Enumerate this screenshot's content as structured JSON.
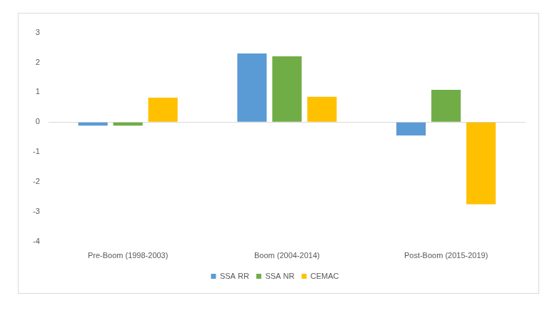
{
  "chart_data": {
    "type": "bar",
    "categories": [
      "Pre-Boom (1998-2003)",
      "Boom (2004-2014)",
      "Post-Boom (2015-2019)"
    ],
    "series": [
      {
        "name": "SSA RR",
        "color": "#5b9bd5",
        "values": [
          -0.12,
          2.3,
          -0.45
        ]
      },
      {
        "name": "SSA NR",
        "color": "#70ad47",
        "values": [
          -0.12,
          2.2,
          1.08
        ]
      },
      {
        "name": "CEMAC",
        "color": "#ffc000",
        "values": [
          0.82,
          0.85,
          -2.75
        ]
      }
    ],
    "ylim": [
      -4,
      3
    ],
    "yticks": [
      -4,
      -3,
      -2,
      -1,
      0,
      1,
      2,
      3
    ],
    "grid": false,
    "legend": "bottom"
  }
}
